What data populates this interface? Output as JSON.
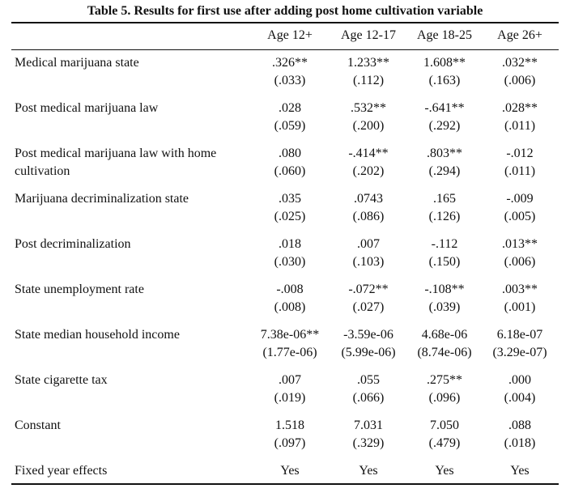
{
  "table": {
    "caption": "Table 5. Results for first use after adding post home cultivation variable",
    "columns": [
      "Age 12+",
      "Age 12-17",
      "Age 18-25",
      "Age 26+"
    ],
    "rows": [
      {
        "label": [
          "Medical marijuana state"
        ],
        "coef": [
          ".326**",
          "1.233**",
          "1.608**",
          ".032**"
        ],
        "se": [
          "(.033)",
          "(.112)",
          "(.163)",
          "(.006)"
        ]
      },
      {
        "label": [
          "Post medical marijuana law"
        ],
        "coef": [
          ".028",
          ".532**",
          "-.641**",
          ".028**"
        ],
        "se": [
          "(.059)",
          "(.200)",
          "(.292)",
          "(.011)"
        ]
      },
      {
        "label": [
          "Post medical marijuana law with home",
          "cultivation"
        ],
        "coef": [
          ".080",
          "-.414**",
          ".803**",
          "-.012"
        ],
        "se": [
          "(.060)",
          "(.202)",
          "(.294)",
          "(.011)"
        ]
      },
      {
        "label": [
          "Marijuana decriminalization state"
        ],
        "coef": [
          ".035",
          ".0743",
          ".165",
          "-.009"
        ],
        "se": [
          "(.025)",
          "(.086)",
          "(.126)",
          "(.005)"
        ]
      },
      {
        "label": [
          "Post decriminalization"
        ],
        "coef": [
          ".018",
          ".007",
          "-.112",
          ".013**"
        ],
        "se": [
          "(.030)",
          "(.103)",
          "(.150)",
          "(.006)"
        ]
      },
      {
        "label": [
          "State unemployment rate"
        ],
        "coef": [
          "-.008",
          "-.072**",
          "-.108**",
          ".003**"
        ],
        "se": [
          "(.008)",
          "(.027)",
          "(.039)",
          "(.001)"
        ]
      },
      {
        "label": [
          "State median household income"
        ],
        "coef": [
          "7.38e-06**",
          "-3.59e-06",
          "4.68e-06",
          "6.18e-07"
        ],
        "se": [
          "(1.77e-06)",
          "(5.99e-06)",
          "(8.74e-06)",
          "(3.29e-07)"
        ]
      },
      {
        "label": [
          "State cigarette tax"
        ],
        "coef": [
          ".007",
          ".055",
          ".275**",
          ".000"
        ],
        "se": [
          "(.019)",
          "(.066)",
          "(.096)",
          "(.004)"
        ]
      },
      {
        "label": [
          "Constant"
        ],
        "coef": [
          "1.518",
          "7.031",
          "7.050",
          ".088"
        ],
        "se": [
          "(.097)",
          "(.329)",
          "(.479)",
          "(.018)"
        ]
      },
      {
        "label": [
          "Fixed year effects"
        ],
        "coef": [
          "Yes",
          "Yes",
          "Yes",
          "Yes"
        ],
        "se": []
      }
    ]
  }
}
